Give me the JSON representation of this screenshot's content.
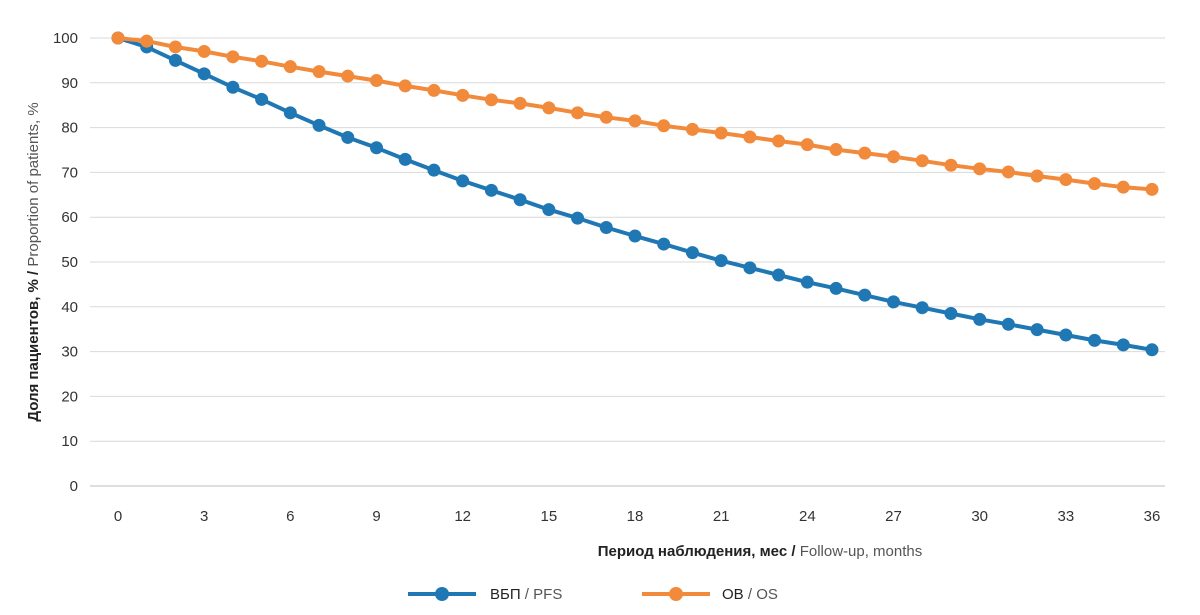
{
  "chart_data": {
    "type": "line",
    "title": "",
    "xlabel_ru": "Период наблюдения, мес",
    "xlabel_sep": " / ",
    "xlabel_en": "Follow-up, months",
    "ylabel_ru": "Доля пациентов, %",
    "ylabel_sep": " / ",
    "ylabel_en": "Proportion of patients, %",
    "xlim": [
      0,
      36
    ],
    "ylim": [
      0,
      100
    ],
    "x_ticks": [
      0,
      3,
      6,
      9,
      12,
      15,
      18,
      21,
      24,
      27,
      30,
      33,
      36
    ],
    "y_ticks": [
      0,
      10,
      20,
      30,
      40,
      50,
      60,
      70,
      80,
      90,
      100
    ],
    "grid": true,
    "legend_position": "bottom-center",
    "x": [
      0,
      1,
      2,
      3,
      4,
      5,
      6,
      7,
      8,
      9,
      10,
      11,
      12,
      13,
      14,
      15,
      16,
      17,
      18,
      19,
      20,
      21,
      22,
      23,
      24,
      25,
      26,
      27,
      28,
      29,
      30,
      31,
      32,
      33,
      34,
      35,
      36
    ],
    "series": [
      {
        "name_ru": "ВБП",
        "name_sep": " / ",
        "name_en": "PFS",
        "color": "#1f77b4",
        "values": [
          100,
          98,
          95,
          92,
          89,
          86.3,
          83.3,
          80.5,
          77.8,
          75.5,
          72.9,
          70.5,
          68.1,
          66,
          63.9,
          61.7,
          59.8,
          57.7,
          55.8,
          54,
          52.1,
          50.3,
          48.7,
          47.1,
          45.5,
          44.1,
          42.6,
          41.1,
          39.8,
          38.5,
          37.2,
          36.1,
          34.9,
          33.7,
          32.5,
          31.5,
          30.4
        ]
      },
      {
        "name_ru": "ОВ",
        "name_sep": " / ",
        "name_en": "OS",
        "color": "#f28a3c",
        "values": [
          100,
          99.3,
          98,
          97,
          95.8,
          94.8,
          93.6,
          92.5,
          91.5,
          90.5,
          89.3,
          88.3,
          87.2,
          86.2,
          85.4,
          84.4,
          83.3,
          82.3,
          81.5,
          80.4,
          79.6,
          78.8,
          77.9,
          77,
          76.2,
          75.1,
          74.3,
          73.5,
          72.6,
          71.6,
          70.8,
          70.1,
          69.2,
          68.4,
          67.5,
          66.7,
          66.2
        ]
      }
    ]
  }
}
